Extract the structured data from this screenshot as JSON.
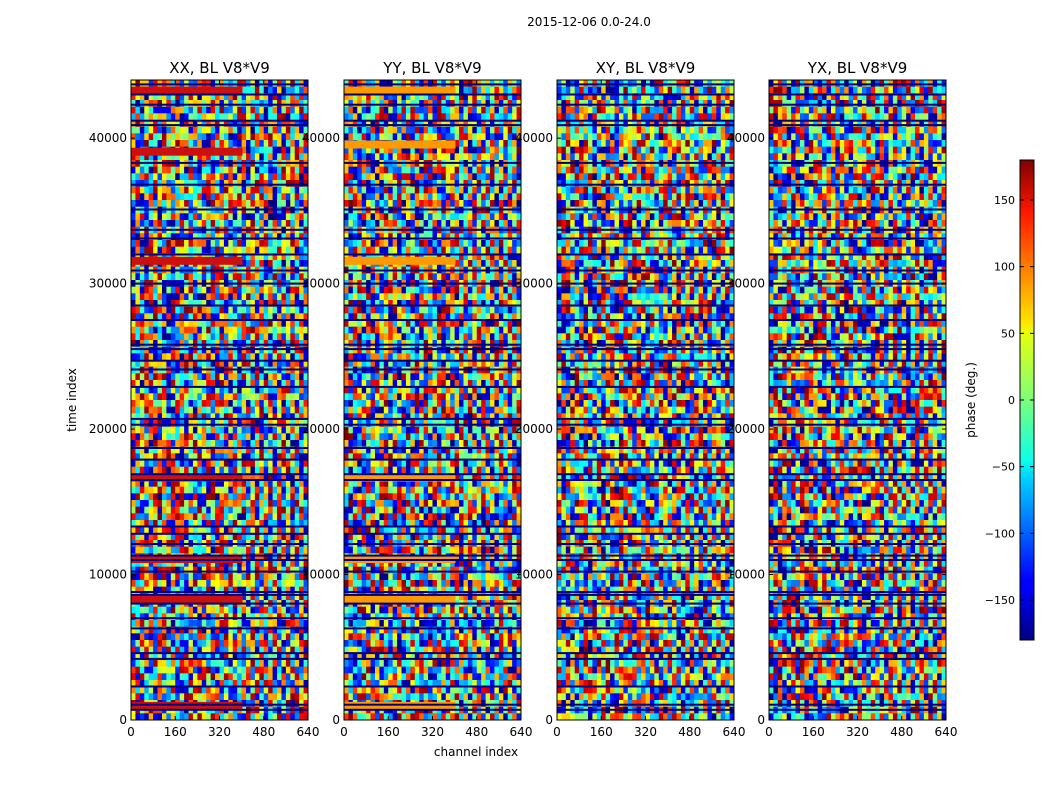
{
  "chart_data": {
    "type": "heatmap",
    "suptitle": "2015-12-06 0.0-24.0",
    "xlabel": "channel index",
    "ylabel": "time index",
    "xlim": [
      0,
      640
    ],
    "ylim": [
      0,
      44000
    ],
    "x_ticks": [
      0,
      160,
      320,
      480,
      640
    ],
    "y_ticks": [
      0,
      10000,
      20000,
      30000,
      40000
    ],
    "x_tick_labels": [
      "0",
      "160",
      "320",
      "480",
      "640"
    ],
    "y_tick_labels": [
      "0",
      "10000",
      "20000",
      "30000",
      "40000"
    ],
    "panels": [
      {
        "title": "XX, BL V8*V9",
        "dominant_band_color": "#cc1010"
      },
      {
        "title": "YY, BL V8*V9",
        "dominant_band_color": "#ff9900"
      },
      {
        "title": "XY, BL V8*V9",
        "dominant_band_color": "#ffcc00"
      },
      {
        "title": "YX, BL V8*V9",
        "dominant_band_color": "#00ccff"
      }
    ],
    "colorbar": {
      "label": "phase (deg.)",
      "range": [
        -180,
        180
      ],
      "ticks": [
        -150,
        -100,
        -50,
        0,
        50,
        100,
        150
      ],
      "tick_labels": [
        "−150",
        "−100",
        "−50",
        "0",
        "50",
        "100",
        "150"
      ],
      "colormap": "jet"
    },
    "horizontal_band_times": [
      700,
      1050,
      2300,
      4200,
      4600,
      6300,
      7000,
      8000,
      8600,
      8800,
      10200,
      11000,
      11300,
      12100,
      12800,
      13300,
      16500,
      16900,
      17900,
      18700,
      20300,
      20700,
      22900,
      24100,
      24700,
      25500,
      25800,
      27500,
      28500,
      30000,
      30900,
      32000,
      33100,
      33700,
      35100,
      36800,
      38300,
      40900,
      41200,
      42300,
      43000,
      43700
    ]
  }
}
